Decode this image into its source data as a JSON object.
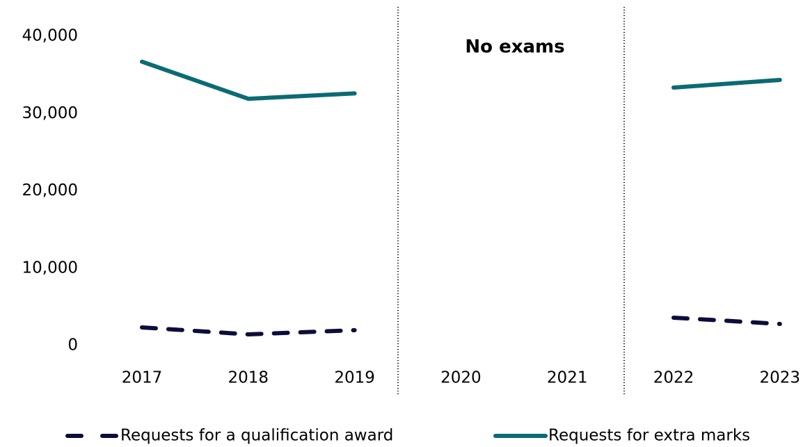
{
  "chart_data": {
    "type": "line",
    "annotation": "No exams",
    "categories": [
      "2017",
      "2018",
      "2019",
      "2020",
      "2021",
      "2022",
      "2023"
    ],
    "series": [
      {
        "name": "Requests for a qualification award",
        "color": "#0d0d3a",
        "dashed": true,
        "values": [
          2340,
          1440,
          1980,
          null,
          null,
          3600,
          2790
        ]
      },
      {
        "name": "Requests for extra marks",
        "color": "#0b6b73",
        "dashed": false,
        "values": [
          36700,
          31900,
          32600,
          null,
          null,
          33350,
          34340
        ]
      }
    ],
    "ylim": [
      0,
      40000
    ],
    "yticks": [
      0,
      {
        "value": 10000,
        "label": "10,000"
      },
      {
        "value": 20000,
        "label": "20,000"
      },
      {
        "value": 30000,
        "label": "30,000"
      },
      {
        "value": 40000,
        "label": "40,000"
      }
    ],
    "grid": false
  }
}
